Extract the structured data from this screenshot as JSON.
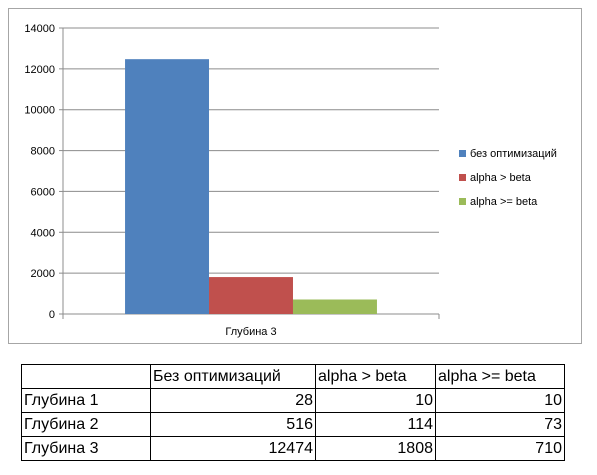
{
  "chart_data": {
    "type": "bar",
    "categories": [
      "Глубина 3"
    ],
    "series": [
      {
        "name": "без оптимизаций",
        "values": [
          12474
        ],
        "color": "#4f81bd"
      },
      {
        "name": "alpha > beta",
        "values": [
          1808
        ],
        "color": "#c0504d"
      },
      {
        "name": "alpha >= beta",
        "values": [
          710
        ],
        "color": "#9bbb59"
      }
    ],
    "title": "",
    "xlabel": "",
    "ylabel": "",
    "ylim": [
      0,
      14000
    ],
    "yticks": [
      0,
      2000,
      4000,
      6000,
      8000,
      10000,
      12000,
      14000
    ],
    "grid": true,
    "legend": "right"
  },
  "table": {
    "headers": [
      "",
      "Без оптимизаций",
      "alpha > beta",
      "alpha >= beta"
    ],
    "rows": [
      {
        "label": "Глубина 1",
        "values": [
          "28",
          "10",
          "10"
        ]
      },
      {
        "label": "Глубина 2",
        "values": [
          "516",
          "114",
          "73"
        ]
      },
      {
        "label": "Глубина 3",
        "values": [
          "12474",
          "1808",
          "710"
        ]
      }
    ]
  }
}
